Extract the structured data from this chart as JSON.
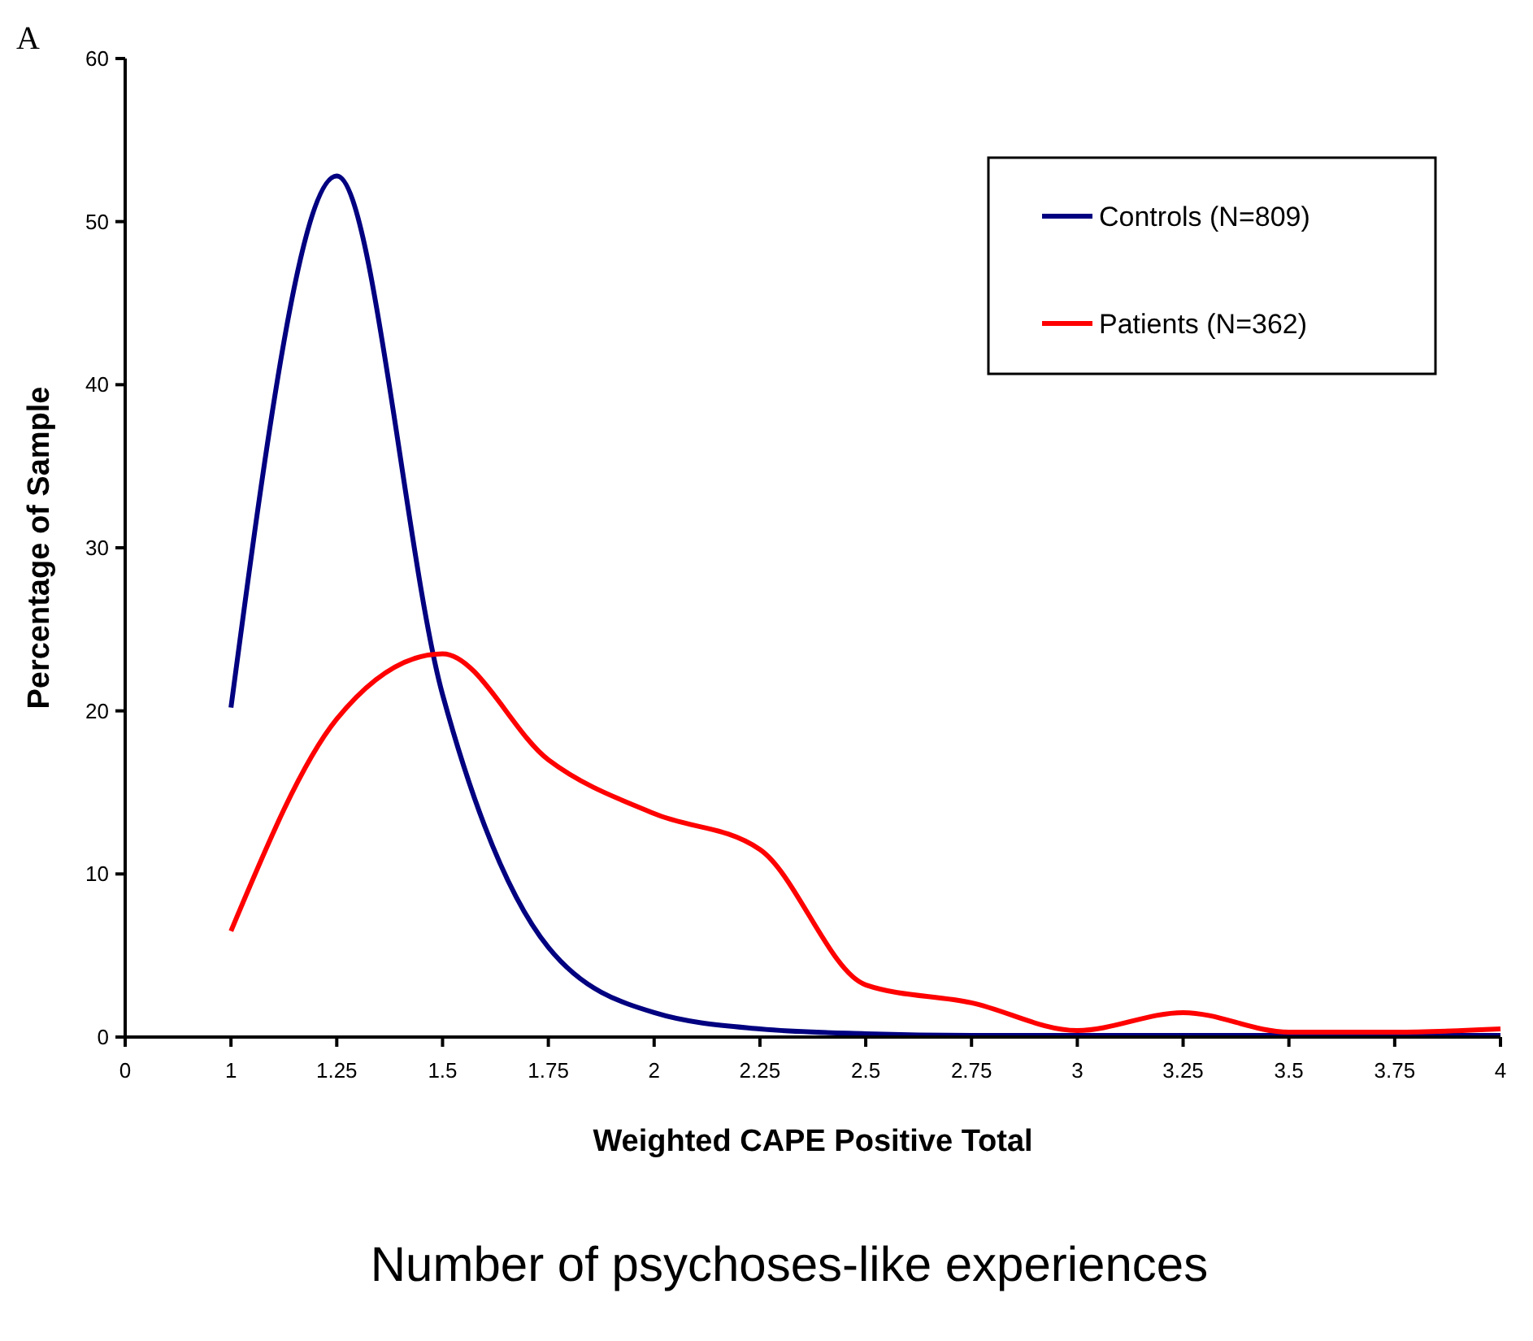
{
  "chart_data": {
    "type": "line",
    "xlabel": "Weighted CAPE Positive Total",
    "ylabel": "Percentage of Sample",
    "annotations": [
      "A",
      "Number of psychoses-like experiences"
    ],
    "categories": [
      "0",
      "1",
      "1.25",
      "1.5",
      "1.75",
      "2",
      "2.25",
      "2.5",
      "2.75",
      "3",
      "3.25",
      "3.5",
      "3.75",
      "4"
    ],
    "series": [
      {
        "name": "Controls (N=809)",
        "color": "#000080",
        "values": [
          null,
          20.2,
          52.8,
          21,
          5.5,
          1.5,
          0.5,
          0.2,
          0.1,
          0.1,
          0.1,
          0.1,
          0.1,
          0.1
        ]
      },
      {
        "name": "Patients (N=362)",
        "color": "#ff0000",
        "values": [
          null,
          6.5,
          19.5,
          23.5,
          17,
          13.7,
          11.5,
          3.2,
          2.1,
          0.4,
          1.5,
          0.3,
          0.3,
          0.5
        ]
      }
    ],
    "ylim": [
      0,
      60
    ],
    "yticks": [
      0,
      10,
      20,
      30,
      40,
      50,
      60
    ],
    "grid": false,
    "legend": "top right",
    "marker": "none",
    "line_style": "solid"
  }
}
